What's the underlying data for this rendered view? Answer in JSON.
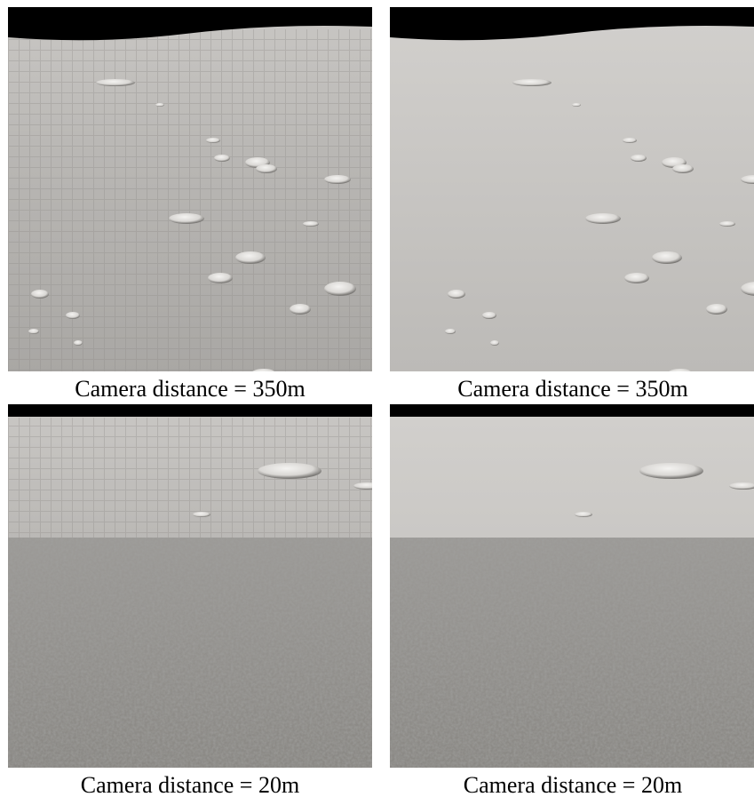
{
  "panels": [
    {
      "caption": "Camera distance = 350m"
    },
    {
      "caption": "Camera distance = 350m"
    },
    {
      "caption": "Camera distance = 20m"
    },
    {
      "caption": "Camera distance = 20m"
    }
  ]
}
